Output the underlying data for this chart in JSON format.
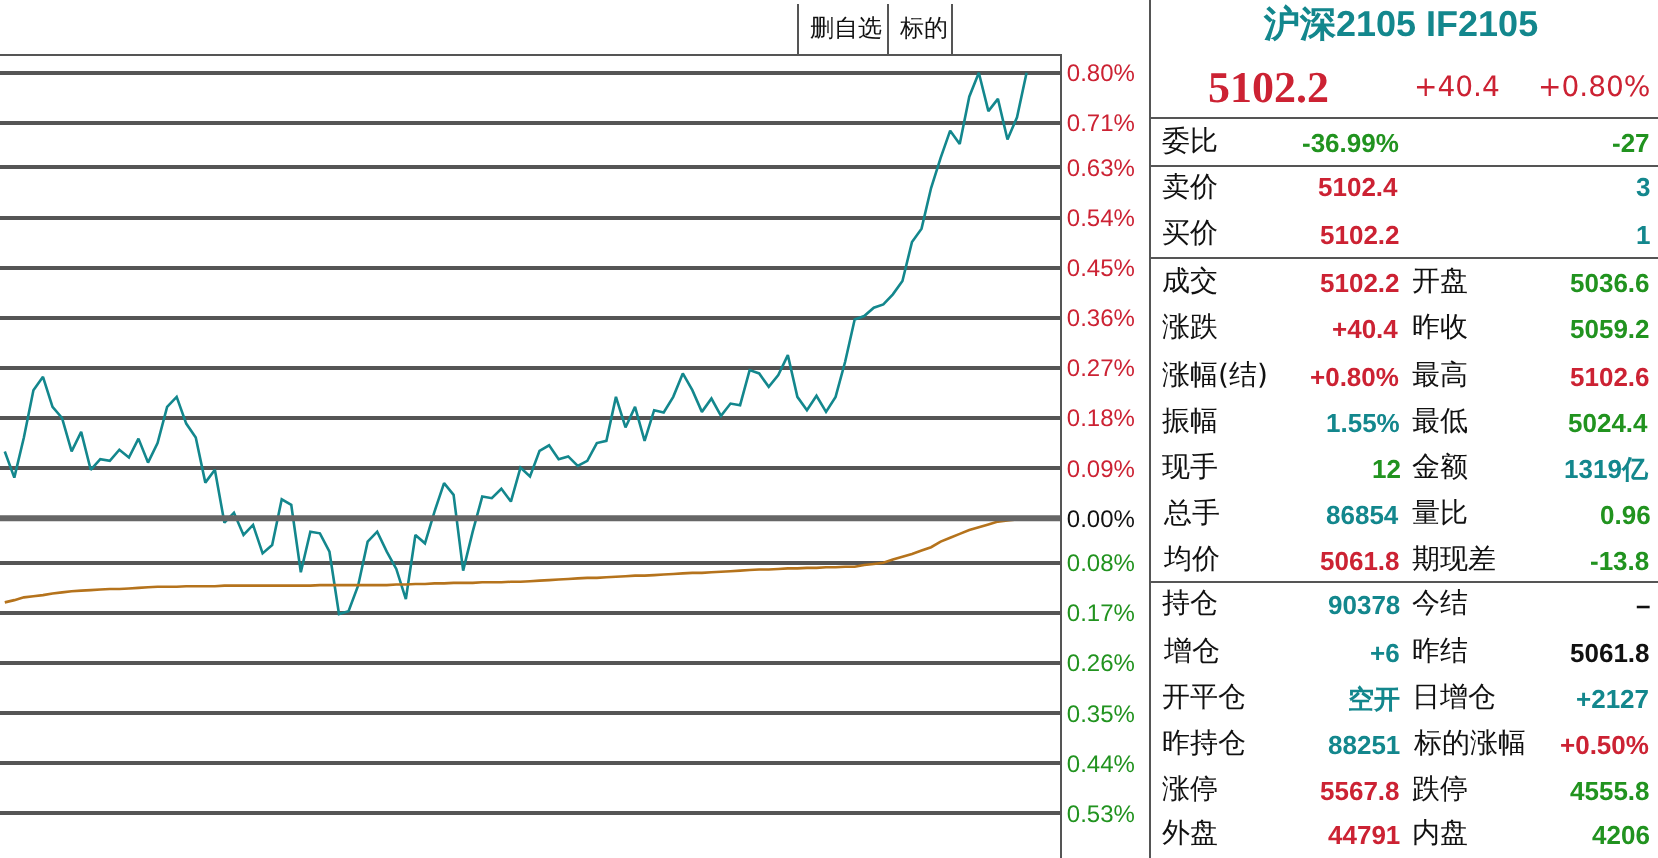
{
  "chart_data": {
    "type": "line",
    "categories": [
      null,
      null,
      null,
      null,
      null,
      null,
      null,
      null,
      null,
      null,
      null,
      null,
      null,
      null,
      null,
      null,
      null,
      null,
      null,
      null,
      null,
      null,
      null,
      null,
      null,
      null,
      null,
      null,
      null,
      null,
      null,
      null,
      null,
      null,
      null,
      null,
      null,
      null,
      null,
      null,
      null,
      null,
      null,
      null,
      null,
      null,
      null,
      null,
      null,
      null,
      null,
      null,
      null,
      null,
      null,
      null,
      null,
      null,
      null,
      null,
      null,
      null,
      null,
      null,
      null,
      null,
      null,
      null,
      null,
      null,
      null,
      null,
      null,
      null,
      null,
      null,
      null,
      null,
      null,
      null,
      null,
      null,
      null,
      null,
      null,
      null,
      null,
      null,
      null,
      null,
      null,
      null,
      null,
      null,
      null,
      null,
      null,
      null,
      null,
      null,
      null,
      null,
      null,
      null,
      null,
      null,
      null,
      null,
      null,
      null,
      null
    ],
    "series": [
      {
        "color": "#13878d",
        "values": [
          0.12,
          0.073,
          0.145,
          0.23,
          0.254,
          0.2,
          0.18,
          0.12,
          0.155,
          0.087,
          0.106,
          0.103,
          0.123,
          0.109,
          0.143,
          0.1,
          0.135,
          0.2,
          0.218,
          0.17,
          0.145,
          0.064,
          0.087,
          -0.008,
          0.01,
          -0.03,
          -0.012,
          -0.063,
          -0.048,
          0.034,
          0.024,
          -0.097,
          -0.024,
          -0.027,
          -0.06,
          -0.172,
          -0.167,
          -0.121,
          -0.042,
          -0.024,
          -0.06,
          -0.091,
          -0.145,
          -0.03,
          -0.045,
          0.012,
          0.063,
          0.042,
          -0.094,
          -0.024,
          0.039,
          0.036,
          0.053,
          0.03,
          0.091,
          0.075,
          0.121,
          0.131,
          0.106,
          0.111,
          0.094,
          0.103,
          0.135,
          0.139,
          0.218,
          0.163,
          0.2,
          0.139,
          0.194,
          0.19,
          0.218,
          0.26,
          0.23,
          0.191,
          0.215,
          0.184,
          0.206,
          0.203,
          0.266,
          0.26,
          0.236,
          0.257,
          0.293,
          0.218,
          0.194,
          0.22,
          0.191,
          0.218,
          0.281,
          0.357,
          0.363,
          0.378,
          0.384,
          0.402,
          0.426,
          0.496,
          0.52,
          0.593,
          0.647,
          0.696,
          0.672,
          0.757,
          0.8,
          0.731,
          0.753,
          0.68,
          0.72,
          0.8,
          null,
          null,
          null
        ]
      },
      {
        "color": "#b5731c",
        "values": [
          -0.151,
          -0.147,
          -0.142,
          -0.14,
          -0.138,
          -0.135,
          -0.133,
          -0.131,
          -0.13,
          -0.129,
          -0.128,
          -0.127,
          -0.127,
          -0.126,
          -0.125,
          -0.124,
          -0.123,
          -0.123,
          -0.123,
          -0.122,
          -0.122,
          -0.122,
          -0.122,
          -0.121,
          -0.121,
          -0.121,
          -0.121,
          -0.121,
          -0.121,
          -0.121,
          -0.121,
          -0.121,
          -0.121,
          -0.12,
          -0.12,
          -0.12,
          -0.12,
          -0.12,
          -0.12,
          -0.12,
          -0.12,
          -0.119,
          -0.119,
          -0.118,
          -0.118,
          -0.117,
          -0.117,
          -0.116,
          -0.116,
          -0.116,
          -0.115,
          -0.115,
          -0.115,
          -0.114,
          -0.114,
          -0.113,
          -0.112,
          -0.111,
          -0.11,
          -0.109,
          -0.108,
          -0.107,
          -0.107,
          -0.106,
          -0.105,
          -0.104,
          -0.103,
          -0.103,
          -0.102,
          -0.101,
          -0.1,
          -0.099,
          -0.098,
          -0.098,
          -0.097,
          -0.096,
          -0.095,
          -0.094,
          -0.093,
          -0.092,
          -0.092,
          -0.091,
          -0.09,
          -0.09,
          -0.089,
          -0.089,
          -0.088,
          -0.088,
          -0.087,
          -0.087,
          -0.084,
          -0.082,
          -0.08,
          -0.074,
          -0.069,
          -0.064,
          -0.058,
          -0.052,
          -0.042,
          -0.035,
          -0.028,
          -0.021,
          -0.016,
          -0.011,
          -0.006,
          -0.004,
          -0.002,
          0,
          null,
          null,
          null
        ]
      }
    ],
    "ylim": [
      -0.61,
      0.83
    ],
    "yticks": [
      {
        "value": 0.8,
        "label": "0.80%"
      },
      {
        "value": 0.71,
        "label": "0.71%"
      },
      {
        "value": 0.63,
        "label": "0.63%"
      },
      {
        "value": 0.54,
        "label": "0.54%"
      },
      {
        "value": 0.45,
        "label": "0.45%"
      },
      {
        "value": 0.36,
        "label": "0.36%"
      },
      {
        "value": 0.27,
        "label": "0.27%"
      },
      {
        "value": 0.18,
        "label": "0.18%"
      },
      {
        "value": 0.09,
        "label": "0.09%"
      },
      {
        "value": 0,
        "label": "0.00%"
      },
      {
        "value": -0.08,
        "label": "0.08%"
      },
      {
        "value": -0.17,
        "label": "0.17%"
      },
      {
        "value": -0.26,
        "label": "0.26%"
      },
      {
        "value": -0.35,
        "label": "0.35%"
      },
      {
        "value": -0.44,
        "label": "0.44%"
      },
      {
        "value": -0.53,
        "label": "0.53%"
      }
    ],
    "tick_labels": "y",
    "grid": "y",
    "marker": "none",
    "line_style": "solid",
    "ref_lines": [
      {
        "axis": "y",
        "value": 0,
        "color": "#666666"
      }
    ],
    "annotations": [
      "删自选",
      "标的",
      "沪深2105 IF2105",
      "5102.2",
      "+40.4",
      "+0.80%",
      "委比",
      "-36.99%",
      "-27",
      "卖价",
      "5102.4",
      "3",
      "买价",
      "5102.2",
      "1",
      "成交",
      "5102.2",
      "开盘",
      "5036.6",
      "涨跌",
      "+40.4",
      "昨收",
      "5059.2",
      "涨幅(结)",
      "+0.80%",
      "最高",
      "5102.6",
      "振幅",
      "1.55%",
      "最低",
      "5024.4",
      "现手",
      "12",
      "金额",
      "1319亿",
      "总手",
      "86854",
      "量比",
      "0.96",
      "均价",
      "5061.8",
      "期现差",
      "-13.8",
      "持仓",
      "90378",
      "今结",
      "–",
      "增仓",
      "+6",
      "昨结",
      "5061.8",
      "开平仓",
      "空开",
      "日增仓",
      "+2127",
      "昨持仓",
      "88251",
      "标的涨幅",
      "+0.50%",
      "涨停",
      "5567.8",
      "跌停",
      "4555.8",
      "外盘",
      "44791",
      "内盘",
      "4206"
    ]
  }
}
